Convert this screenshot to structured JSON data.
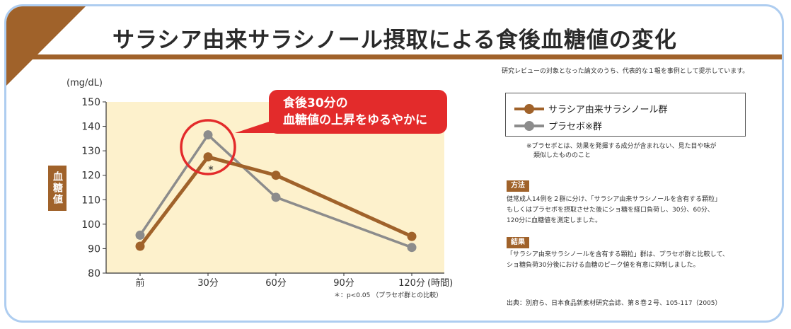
{
  "header": {
    "title": "サラシア由来サラシノール摂取による食後血糖値の変化",
    "note": "研究レビューの対象となった論文のうち、代表的な１報を事例として提示しています。"
  },
  "chart_data": {
    "type": "line",
    "unit": "(mg/dL)",
    "ylabel": "血糖値",
    "x_unit": "(時間)",
    "ylim": [
      80,
      150
    ],
    "yticks": [
      80,
      90,
      100,
      110,
      120,
      130,
      140,
      150
    ],
    "categories": [
      "前",
      "30分",
      "60分",
      "90分",
      "120分"
    ],
    "series": [
      {
        "name": "サラシア由来サラシノール群",
        "color": "#a0622a",
        "points": [
          [
            0,
            91
          ],
          [
            1,
            127.5
          ],
          [
            2,
            120
          ],
          [
            4,
            95
          ]
        ]
      },
      {
        "name": "プラセボ※群",
        "color": "#8c8c8c",
        "points": [
          [
            0,
            95.5
          ],
          [
            1,
            136.5
          ],
          [
            2,
            111
          ],
          [
            4,
            90.5
          ]
        ]
      }
    ],
    "annotation_mark": "*",
    "significance_note": "＊：p<0.05 （プラセボ群との比較）",
    "callout": [
      "食後30分の",
      "血糖値の上昇をゆるやかに"
    ],
    "plot_background": "#fdf1cc",
    "grid": false,
    "legend_position": "right"
  },
  "legend": {
    "placebo_note_1": "※プラセボとは、効果を発揮する成分が含まれない、見た目や味が",
    "placebo_note_2": "類似したもののこと"
  },
  "method": {
    "label": "方法",
    "text_1": "健常成人14例を２群に分け、「サラシア由来サラシノールを含有する顆粒」",
    "text_2": "もしくはプラセボを摂取させた後にショ糖を経口負荷し、30分、60分、",
    "text_3": "120分に血糖値を測定しました。"
  },
  "result": {
    "label": "結果",
    "text_1": "「サラシア由来サラシノールを含有する顆粒」群は、プラセボ群と比較して、",
    "text_2": "ショ糖負荷30分後における血糖のピーク値を有意に抑制しました。"
  },
  "source": "出典：別府ら、日本食品新素材研究会誌、第８巻２号、105-117（2005）"
}
